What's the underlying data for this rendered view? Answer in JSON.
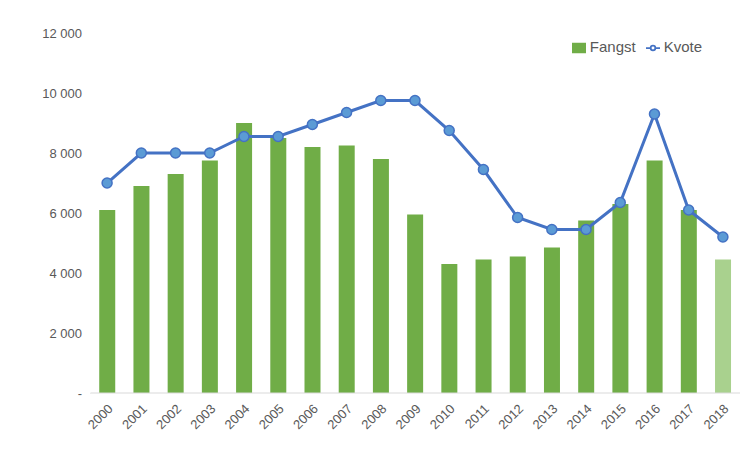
{
  "chart_data": {
    "type": "bar",
    "categories": [
      "2000",
      "2001",
      "2002",
      "2003",
      "2004",
      "2005",
      "2006",
      "2007",
      "2008",
      "2009",
      "2010",
      "2011",
      "2012",
      "2013",
      "2014",
      "2015",
      "2016",
      "2017",
      "2018"
    ],
    "series": [
      {
        "name": "Fangst",
        "type": "bar",
        "color": "#70ad47",
        "colors": [
          "#70ad47",
          "#70ad47",
          "#70ad47",
          "#70ad47",
          "#70ad47",
          "#70ad47",
          "#70ad47",
          "#70ad47",
          "#70ad47",
          "#70ad47",
          "#70ad47",
          "#70ad47",
          "#70ad47",
          "#70ad47",
          "#70ad47",
          "#70ad47",
          "#70ad47",
          "#70ad47",
          "#a9d18e"
        ],
        "values": [
          6100,
          6900,
          7300,
          7750,
          9000,
          8500,
          8200,
          8250,
          7800,
          5950,
          4300,
          4450,
          4550,
          4850,
          5750,
          6300,
          7750,
          6100,
          4450
        ]
      },
      {
        "name": "Kvote",
        "type": "line",
        "color": "#4472c4",
        "marker": "circle",
        "values": [
          7000,
          8000,
          8000,
          8000,
          8550,
          8550,
          8950,
          9350,
          9750,
          9750,
          8750,
          7450,
          5850,
          5450,
          5450,
          6350,
          9300,
          6100,
          5200
        ]
      }
    ],
    "ylim": [
      0,
      12000
    ],
    "yticks": [
      {
        "value": 0,
        "label": "-"
      },
      {
        "value": 2000,
        "label": "2 000"
      },
      {
        "value": 4000,
        "label": "4 000"
      },
      {
        "value": 6000,
        "label": "6 000"
      },
      {
        "value": 8000,
        "label": "8 000"
      },
      {
        "value": 10000,
        "label": "10 000"
      },
      {
        "value": 12000,
        "label": "12 000"
      }
    ],
    "grid": false,
    "legend": "upper right"
  }
}
